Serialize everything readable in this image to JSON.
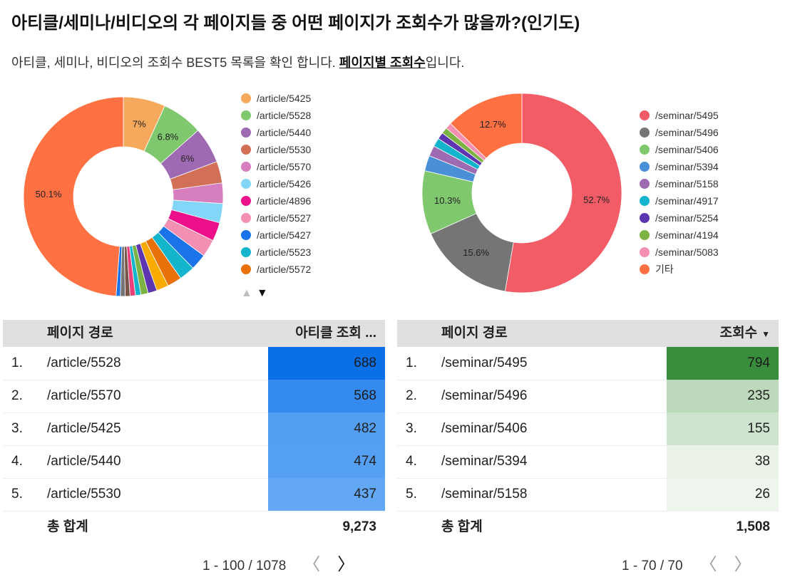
{
  "header": {
    "title": "아티클/세미나/비디오의 각 페이지들 중 어떤 페이지가 조회수가 많을까?(인기도)",
    "subtitle_prefix": "아티클, 세미나, 비디오의 조회수 BEST5 목록을 확인 합니다. ",
    "subtitle_link": "페이지별 조회수",
    "subtitle_suffix": "입니다."
  },
  "chart_data": [
    {
      "type": "pie",
      "donut": true,
      "slices": [
        {
          "label": "/article/5425",
          "value": 7.0,
          "color": "#F6A85C",
          "pct_label": "7%"
        },
        {
          "label": "/article/5528",
          "value": 6.8,
          "color": "#7FC86E",
          "pct_label": "6.8%"
        },
        {
          "label": "/article/5440",
          "value": 6.0,
          "color": "#9E6AB2",
          "pct_label": "6%"
        },
        {
          "label": "/article/5530",
          "value": 3.6,
          "color": "#D16F57",
          "pct_label": ""
        },
        {
          "label": "/article/5570",
          "value": 3.4,
          "color": "#D77EBF",
          "pct_label": ""
        },
        {
          "label": "/article/5426",
          "value": 3.2,
          "color": "#84D6F9",
          "pct_label": ""
        },
        {
          "label": "/article/4896",
          "value": 3.1,
          "color": "#EC108B",
          "pct_label": ""
        },
        {
          "label": "/article/5527",
          "value": 2.9,
          "color": "#F28FB2",
          "pct_label": ""
        },
        {
          "label": "/article/5427",
          "value": 2.7,
          "color": "#1A73E8",
          "pct_label": ""
        },
        {
          "label": "/article/5523",
          "value": 2.6,
          "color": "#12B5CB",
          "pct_label": ""
        },
        {
          "label": "/article/5572",
          "value": 2.4,
          "color": "#E8710A",
          "pct_label": ""
        },
        {
          "label": "",
          "value": 2.0,
          "color": "#F9AB00",
          "pct_label": ""
        },
        {
          "label": "",
          "value": 1.5,
          "color": "#5E35B1",
          "pct_label": ""
        },
        {
          "label": "",
          "value": 1.2,
          "color": "#7CB342",
          "pct_label": ""
        },
        {
          "label": "",
          "value": 0.9,
          "color": "#12B5CB",
          "pct_label": ""
        },
        {
          "label": "",
          "value": 0.9,
          "color": "#EC407A",
          "pct_label": ""
        },
        {
          "label": "",
          "value": 0.8,
          "color": "#795548",
          "pct_label": ""
        },
        {
          "label": "",
          "value": 0.8,
          "color": "#757575",
          "pct_label": ""
        },
        {
          "label": "",
          "value": 0.7,
          "color": "#1A73E8",
          "pct_label": ""
        },
        {
          "label": "",
          "value": 50.1,
          "color": "#FF7043",
          "pct_label": "50.1%"
        }
      ],
      "legend_count": 11
    },
    {
      "type": "pie",
      "donut": true,
      "slices": [
        {
          "label": "/seminar/5495",
          "value": 52.7,
          "color": "#F25C66",
          "pct_label": "52.7%"
        },
        {
          "label": "/seminar/5496",
          "value": 15.6,
          "color": "#757575",
          "pct_label": "15.6%"
        },
        {
          "label": "/seminar/5406",
          "value": 10.3,
          "color": "#7FC86E",
          "pct_label": "10.3%"
        },
        {
          "label": "/seminar/5394",
          "value": 2.5,
          "color": "#4A90D9",
          "pct_label": ""
        },
        {
          "label": "/seminar/5158",
          "value": 1.7,
          "color": "#9E6AB2",
          "pct_label": ""
        },
        {
          "label": "/seminar/4917",
          "value": 1.4,
          "color": "#12B5CB",
          "pct_label": ""
        },
        {
          "label": "/seminar/5254",
          "value": 1.1,
          "color": "#5E35B1",
          "pct_label": ""
        },
        {
          "label": "/seminar/4194",
          "value": 1.0,
          "color": "#7CB342",
          "pct_label": ""
        },
        {
          "label": "/seminar/5083",
          "value": 1.0,
          "color": "#F48FB1",
          "pct_label": ""
        },
        {
          "label": "기타",
          "value": 12.7,
          "color": "#FF7043",
          "pct_label": "12.7%"
        }
      ],
      "legend_count": 10
    }
  ],
  "legend_pager": {
    "up": "▲",
    "down": "▼"
  },
  "article_table": {
    "col_path": "페이지 경로",
    "col_value": "아티클 조회 ...",
    "rows": [
      {
        "rank": "1.",
        "path": "/article/5528",
        "value": "688",
        "num": 688
      },
      {
        "rank": "2.",
        "path": "/article/5570",
        "value": "568",
        "num": 568
      },
      {
        "rank": "3.",
        "path": "/article/5425",
        "value": "482",
        "num": 482
      },
      {
        "rank": "4.",
        "path": "/article/5440",
        "value": "474",
        "num": 474
      },
      {
        "rank": "5.",
        "path": "/article/5530",
        "value": "437",
        "num": 437
      }
    ],
    "total_label": "총 합계",
    "total_value": "9,273",
    "pager": "1 - 100 / 1078",
    "color_max": "#0B6FE8",
    "color_min": "#63A8F5"
  },
  "seminar_table": {
    "col_path": "페이지 경로",
    "col_value": "조회수",
    "sort_icon": "▼",
    "rows": [
      {
        "rank": "1.",
        "path": "/seminar/5495",
        "value": "794",
        "num": 794
      },
      {
        "rank": "2.",
        "path": "/seminar/5496",
        "value": "235",
        "num": 235
      },
      {
        "rank": "3.",
        "path": "/seminar/5406",
        "value": "155",
        "num": 155
      },
      {
        "rank": "4.",
        "path": "/seminar/5394",
        "value": "38",
        "num": 38
      },
      {
        "rank": "5.",
        "path": "/seminar/5158",
        "value": "26",
        "num": 26
      }
    ],
    "total_label": "총 합계",
    "total_value": "1,508",
    "pager": "1 - 70 / 70",
    "color_max": "#388E3C",
    "color_min": "#EEF5EC"
  },
  "pager_icons": {
    "prev": "〈",
    "next": "〉"
  }
}
